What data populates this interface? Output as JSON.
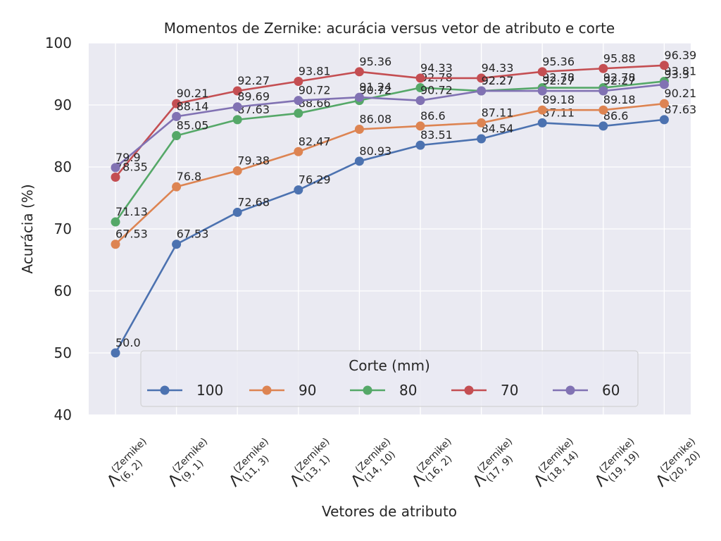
{
  "chart_data": {
    "type": "line",
    "title": "Momentos de Zernike: acurácia versus vetor de atributo e corte",
    "xlabel": "Vetores de atributo",
    "ylabel": "Acurácia (%)",
    "ylim": [
      40,
      100
    ],
    "yticks": [
      "40",
      "50",
      "60",
      "70",
      "80",
      "90",
      "100"
    ],
    "categories": [
      "(6, 2)",
      "(9, 1)",
      "(11, 3)",
      "(13, 1)",
      "(14, 10)",
      "(16, 2)",
      "(17, 9)",
      "(18, 14)",
      "(19, 19)",
      "(20, 20)"
    ],
    "category_symbol": "Λ",
    "category_superscript": "(Zernike)",
    "grid": true,
    "legend": {
      "title": "Corte (mm)",
      "position": "lower center"
    },
    "series": [
      {
        "name": "100",
        "color": "#4c72b0",
        "values": [
          50.0,
          67.53,
          72.68,
          76.29,
          80.93,
          83.51,
          84.54,
          87.11,
          86.6,
          87.63
        ],
        "labels": [
          "50.0",
          "67.53",
          "72.68",
          "76.29",
          "80.93",
          "83.51",
          "84.54",
          "87.11",
          "86.6",
          "87.63"
        ]
      },
      {
        "name": "90",
        "color": "#dd8452",
        "values": [
          67.53,
          76.8,
          79.38,
          82.47,
          86.08,
          86.6,
          87.11,
          89.18,
          89.18,
          90.21
        ],
        "labels": [
          "67.53",
          "76.8",
          "79.38",
          "82.47",
          "86.08",
          "86.6",
          "87.11",
          "89.18",
          "89.18",
          "90.21"
        ]
      },
      {
        "name": "80",
        "color": "#55a868",
        "values": [
          71.13,
          85.05,
          87.63,
          88.66,
          90.72,
          92.78,
          92.27,
          92.78,
          92.78,
          93.81
        ],
        "labels": [
          "71.13",
          "85.05",
          "87.63",
          "88.66",
          "90.72",
          "92.78",
          "92.27",
          "92.78",
          "92.78",
          "93.81"
        ]
      },
      {
        "name": "70",
        "color": "#c44e52",
        "values": [
          78.35,
          90.21,
          92.27,
          93.81,
          95.36,
          94.33,
          94.33,
          95.36,
          95.88,
          96.39
        ],
        "labels": [
          "78.35",
          "90.21",
          "92.27",
          "93.81",
          "95.36",
          "94.33",
          "94.33",
          "95.36",
          "95.88",
          "96.39"
        ]
      },
      {
        "name": "60",
        "color": "#8172b3",
        "values": [
          79.9,
          88.14,
          89.69,
          90.72,
          91.24,
          90.72,
          92.27,
          92.27,
          92.27,
          93.3
        ],
        "labels": [
          "79.9",
          "88.14",
          "89.69",
          "90.72",
          "91.24",
          "90.72",
          "92.27",
          "92.27",
          "92.27",
          "93.3"
        ]
      }
    ]
  }
}
